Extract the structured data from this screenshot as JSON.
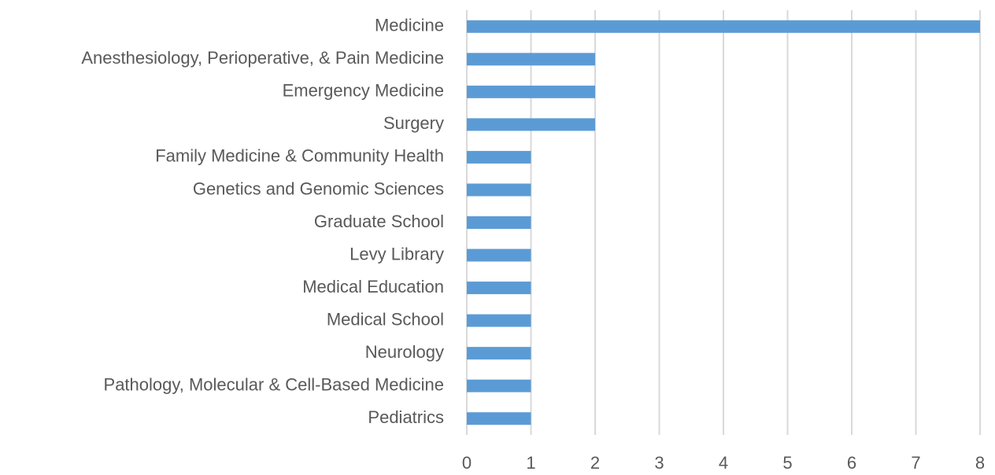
{
  "chart_data": {
    "type": "barh",
    "categories": [
      "Medicine",
      "Anesthesiology, Perioperative, & Pain Medicine",
      "Emergency Medicine",
      "Surgery",
      "Family Medicine & Community Health",
      "Genetics and Genomic Sciences",
      "Graduate School",
      "Levy Library",
      "Medical Education",
      "Medical School",
      "Neurology",
      "Pathology, Molecular & Cell-Based Medicine",
      "Pediatrics"
    ],
    "values": [
      8,
      2,
      2,
      2,
      1,
      1,
      1,
      1,
      1,
      1,
      1,
      1,
      1
    ],
    "color": "#5b9bd5",
    "xlim": [
      0,
      8
    ],
    "xticks": [
      0,
      1,
      2,
      3,
      4,
      5,
      6,
      7,
      8
    ],
    "grid": true
  }
}
